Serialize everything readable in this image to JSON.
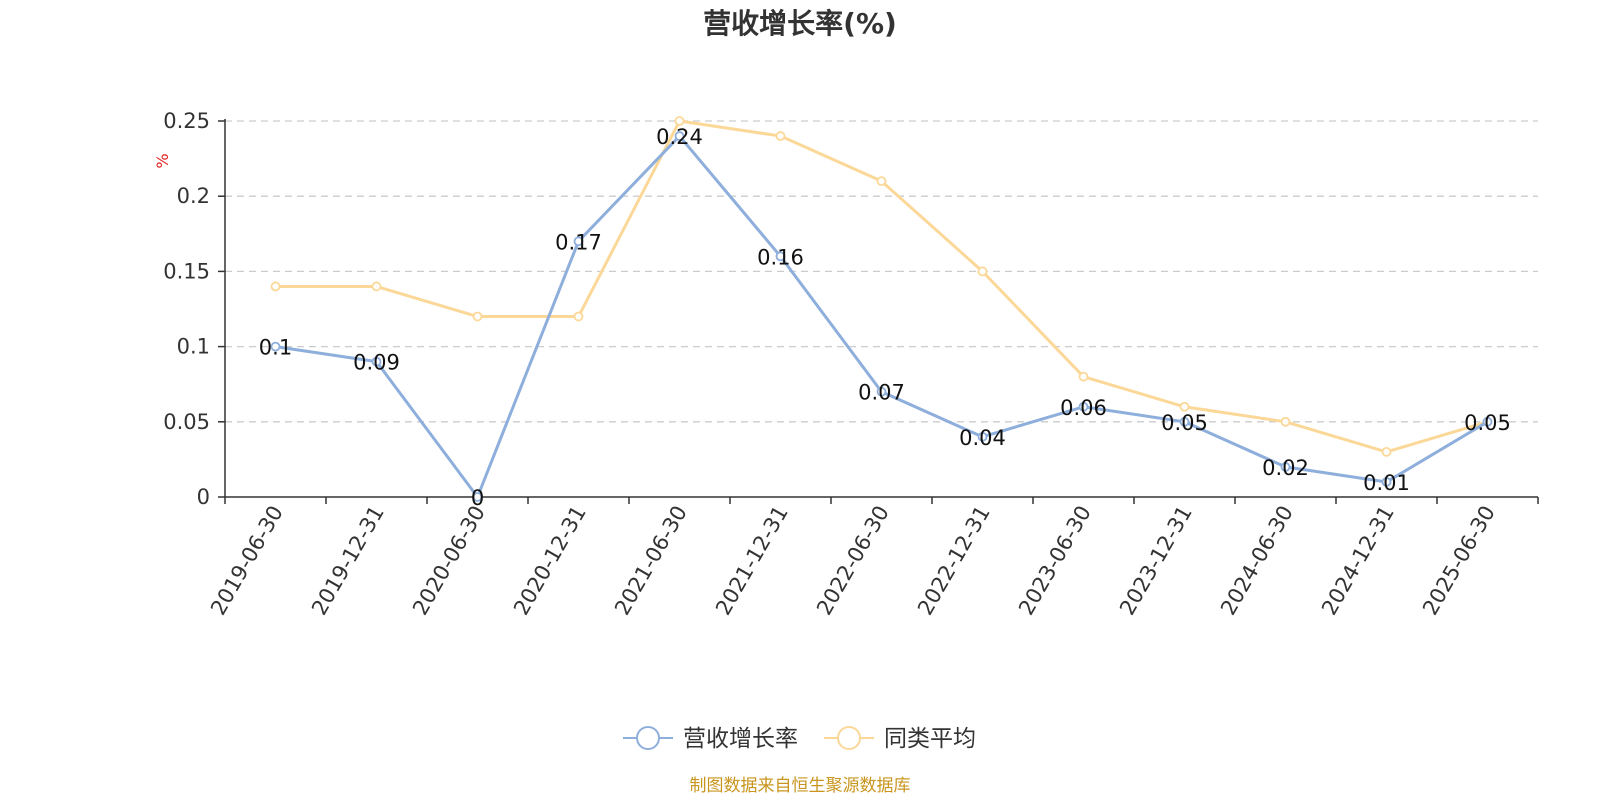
{
  "chart_data": {
    "type": "line",
    "title": "营收增长率(%)",
    "ylabel": "%",
    "categories": [
      "2019-06-30",
      "2019-12-31",
      "2020-06-30",
      "2020-12-31",
      "2021-06-30",
      "2021-12-31",
      "2022-06-30",
      "2022-12-31",
      "2023-06-30",
      "2023-12-31",
      "2024-06-30",
      "2024-12-31",
      "2025-06-30"
    ],
    "yticks": [
      "0",
      "0.05",
      "0.1",
      "0.15",
      "0.2",
      "0.25"
    ],
    "ylim": [
      0,
      0.25
    ],
    "grid": true,
    "legend_position": "bottom",
    "series": [
      {
        "name": "营收增长率",
        "color": "#8eaedc",
        "values": [
          0.1,
          0.09,
          0,
          0.17,
          0.24,
          0.16,
          0.07,
          0.04,
          0.06,
          0.05,
          0.02,
          0.01,
          0.05
        ],
        "labels": [
          "0.1",
          "0.09",
          "0",
          "0.17",
          "0.24",
          "0.16",
          "0.07",
          "0.04",
          "0.06",
          "0.05",
          "0.02",
          "0.01",
          "0.05"
        ]
      },
      {
        "name": "同类平均",
        "color": "#fbd898",
        "values": [
          0.14,
          0.14,
          0.12,
          0.12,
          0.25,
          0.24,
          0.21,
          0.15,
          0.08,
          0.06,
          0.05,
          0.03,
          0.05
        ]
      }
    ]
  },
  "source": "制图数据来自恒生聚源数据库"
}
